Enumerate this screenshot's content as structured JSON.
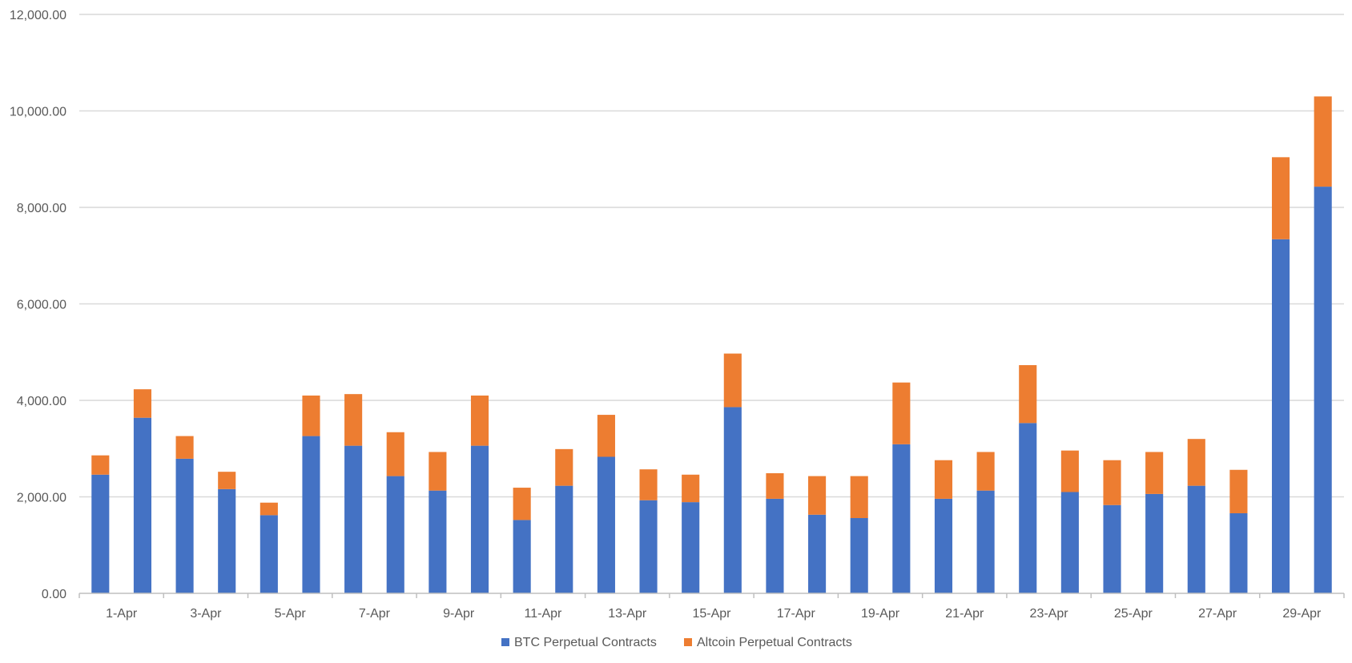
{
  "chart_data": {
    "type": "bar",
    "stacked": true,
    "title": "",
    "xlabel": "",
    "ylabel": "",
    "ylim": [
      0,
      12000
    ],
    "y_ticks": [
      "0.00",
      "2,000.00",
      "4,000.00",
      "6,000.00",
      "8,000.00",
      "10,000.00",
      "12,000.00"
    ],
    "grid": true,
    "legend_position": "bottom",
    "categories": [
      "1-Apr",
      "2-Apr",
      "3-Apr",
      "4-Apr",
      "5-Apr",
      "6-Apr",
      "7-Apr",
      "8-Apr",
      "9-Apr",
      "10-Apr",
      "11-Apr",
      "12-Apr",
      "13-Apr",
      "14-Apr",
      "15-Apr",
      "16-Apr",
      "17-Apr",
      "18-Apr",
      "19-Apr",
      "20-Apr",
      "21-Apr",
      "22-Apr",
      "23-Apr",
      "24-Apr",
      "25-Apr",
      "26-Apr",
      "27-Apr",
      "28-Apr",
      "29-Apr",
      "30-Apr"
    ],
    "x_tick_labels": [
      "1-Apr",
      "3-Apr",
      "5-Apr",
      "7-Apr",
      "9-Apr",
      "11-Apr",
      "13-Apr",
      "15-Apr",
      "17-Apr",
      "19-Apr",
      "21-Apr",
      "23-Apr",
      "25-Apr",
      "27-Apr",
      "29-Apr"
    ],
    "series": [
      {
        "name": "BTC Perpetual Contracts",
        "color": "#4472c4",
        "values": [
          2460,
          3640,
          2790,
          2160,
          1620,
          3260,
          3060,
          2430,
          2130,
          3060,
          1520,
          2230,
          2830,
          1930,
          1890,
          3860,
          1960,
          1630,
          1560,
          3090,
          1960,
          2130,
          3530,
          2100,
          1830,
          2060,
          2230,
          1660,
          7340,
          8430
        ]
      },
      {
        "name": "Altcoin Perpetual Contracts",
        "color": "#ed7d31",
        "values": [
          400,
          590,
          470,
          360,
          260,
          840,
          1070,
          910,
          800,
          1040,
          670,
          760,
          870,
          640,
          570,
          1110,
          530,
          800,
          870,
          1280,
          800,
          800,
          1200,
          860,
          930,
          870,
          970,
          900,
          1700,
          1870
        ]
      }
    ]
  }
}
